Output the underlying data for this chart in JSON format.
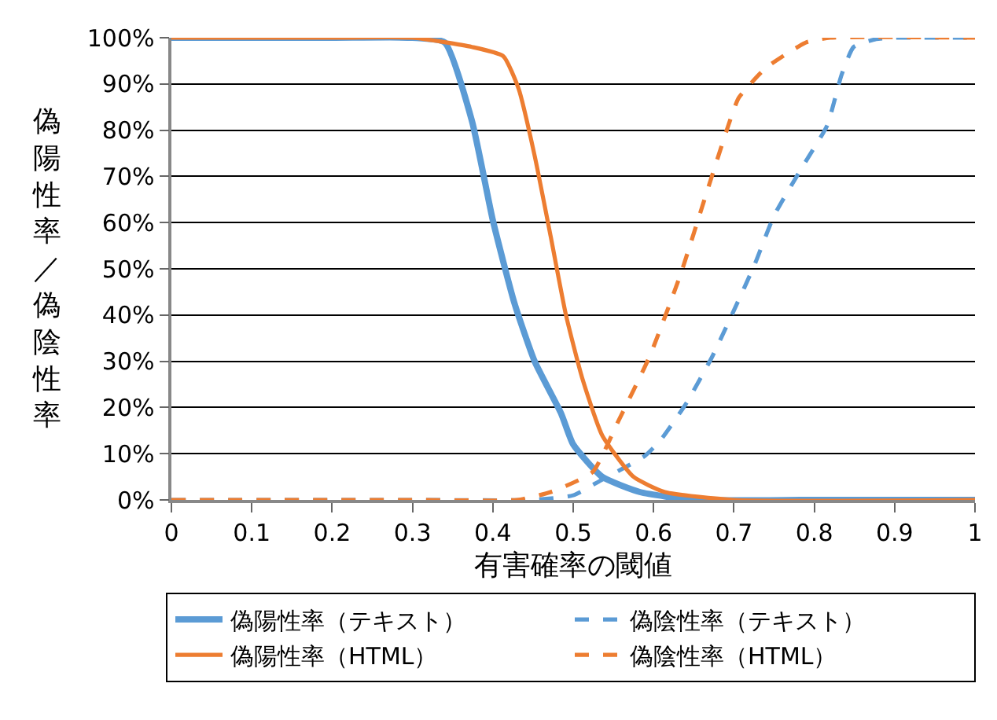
{
  "chart_data": {
    "type": "line",
    "xlabel": "有害確率の閾値",
    "ylabel": "偽陽性率／偽陰性率",
    "xlim": [
      0,
      1
    ],
    "xticks": [
      0,
      0.1,
      0.2,
      0.3,
      0.4,
      0.5,
      0.6,
      0.7,
      0.8,
      0.9,
      1
    ],
    "ylim": [
      0,
      100
    ],
    "yticks": [
      {
        "value": 0,
        "label": "0%"
      },
      {
        "value": 10,
        "label": "10%"
      },
      {
        "value": 20,
        "label": "20%"
      },
      {
        "value": 30,
        "label": "30%"
      },
      {
        "value": 40,
        "label": "40%"
      },
      {
        "value": 50,
        "label": "50%"
      },
      {
        "value": 60,
        "label": "60%"
      },
      {
        "value": 70,
        "label": "70%"
      },
      {
        "value": 80,
        "label": "80%"
      },
      {
        "value": 90,
        "label": "90%"
      },
      {
        "value": 100,
        "label": "100%"
      }
    ],
    "grid": "y",
    "legend": "bottom",
    "marker": "none",
    "series": [
      {
        "name": "偽陽性率（テキスト）",
        "color": "#5b9bd5",
        "line_style": "solid",
        "x": [
          0,
          0.2,
          0.3,
          0.34,
          0.374,
          0.4,
          0.427,
          0.452,
          0.485,
          0.5,
          0.536,
          0.583,
          0.65,
          0.8,
          1
        ],
        "values": [
          100,
          100,
          100,
          99,
          82,
          60.5,
          42.5,
          30,
          18.7,
          12,
          5,
          1.7,
          0,
          0,
          0
        ]
      },
      {
        "name": "偽陰性率（テキスト）",
        "color": "#5b9bd5",
        "line_style": "dashed",
        "x": [
          0,
          0.3,
          0.45,
          0.5,
          0.536,
          0.589,
          0.609,
          0.641,
          0.673,
          0.7,
          0.726,
          0.75,
          0.785,
          0.816,
          0.834,
          0.849,
          0.877,
          0.9,
          1
        ],
        "values": [
          0,
          0,
          0,
          1,
          4.4,
          9.5,
          13,
          21,
          31,
          41,
          51,
          61.5,
          72,
          81,
          92,
          98,
          99.7,
          100,
          100
        ]
      },
      {
        "name": "偽陽性率（HTML）",
        "color": "#ed7d31",
        "line_style": "solid",
        "x": [
          0,
          0.2,
          0.3,
          0.374,
          0.413,
          0.432,
          0.452,
          0.472,
          0.491,
          0.511,
          0.536,
          0.575,
          0.614,
          0.7,
          1
        ],
        "values": [
          100,
          100,
          100,
          98,
          96,
          89,
          74.5,
          57,
          40,
          26.5,
          14,
          5,
          1.7,
          0,
          0
        ]
      },
      {
        "name": "偽陰性率（HTML）",
        "color": "#ed7d31",
        "line_style": "dashed",
        "x": [
          0,
          0.3,
          0.43,
          0.472,
          0.524,
          0.556,
          0.595,
          0.634,
          0.667,
          0.693,
          0.706,
          0.74,
          0.79,
          0.82,
          1
        ],
        "values": [
          0,
          0,
          0,
          1.7,
          6,
          17,
          31,
          49,
          67,
          81,
          87,
          93.5,
          99,
          100,
          100
        ]
      }
    ]
  }
}
